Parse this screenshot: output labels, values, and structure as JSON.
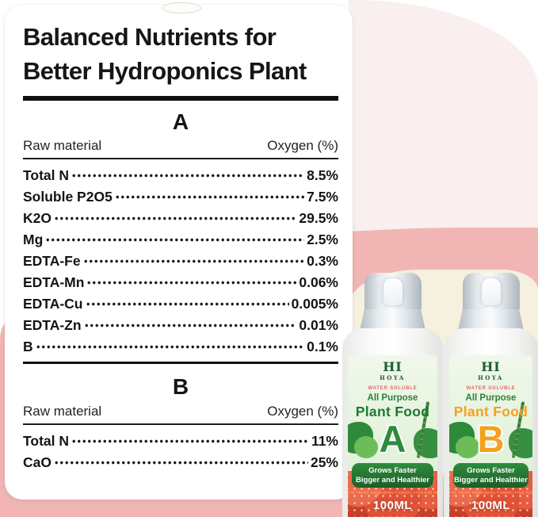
{
  "card": {
    "title_line1": "Balanced Nutrients for",
    "title_line2": "Better Hydroponics Plant",
    "sections": [
      {
        "name": "A",
        "columns": {
          "left": "Raw material",
          "right": "Oxygen (%)"
        },
        "rows": [
          {
            "label": "Total N",
            "value": "8.5%"
          },
          {
            "label": "Soluble P2O5",
            "value": "7.5%"
          },
          {
            "label": "K2O",
            "value": "29.5%"
          },
          {
            "label": "Mg",
            "value": "2.5%"
          },
          {
            "label": "EDTA-Fe",
            "value": "0.3%"
          },
          {
            "label": "EDTA-Mn",
            "value": "0.06%"
          },
          {
            "label": "EDTA-Cu",
            "value": "0.005%"
          },
          {
            "label": "EDTA-Zn",
            "value": "0.01%"
          },
          {
            "label": "B",
            "value": "0.1%"
          }
        ]
      },
      {
        "name": "B",
        "columns": {
          "left": "Raw material",
          "right": "Oxygen (%)"
        },
        "rows": [
          {
            "label": "Total N",
            "value": "11%"
          },
          {
            "label": "CaO",
            "value": "25%"
          }
        ]
      }
    ]
  },
  "bottles": [
    {
      "brand_top": "HI",
      "brand_bottom": "HOYA",
      "water_soluble": "WATER SOLUBLE",
      "purpose": "All Purpose",
      "product_name": "Plant Food",
      "variant": "A",
      "banner_line1": "Grows Faster",
      "banner_line2": "Bigger and Healthier",
      "caption": "For Herbs Vegetables Flowers Fruit And More",
      "volume": "100ML"
    },
    {
      "brand_top": "HI",
      "brand_bottom": "HOYA",
      "water_soluble": "WATER SOLUBLE",
      "purpose": "All Purpose",
      "product_name": "Plant Food",
      "variant": "B",
      "banner_line1": "Grows Faster",
      "banner_line2": "Bigger and Healthier",
      "caption": "For Herbs Vegetables Flowers Fruit And More",
      "volume": "100ML"
    }
  ],
  "colors": {
    "salmon_pink": "#f1b6b3",
    "light_pink": "#f8efee",
    "cream": "#f6f0de",
    "wood_tan": "#d9b183",
    "label_mint": "#e9f5e2",
    "brand_green": "#1e5c33",
    "purpose_green": "#2e8038",
    "product_a_green": "#1d7a2d",
    "product_b_orange": "#f5a01e",
    "banner_green": "#1e6b2f",
    "water_soluble_red": "#e06a65"
  }
}
